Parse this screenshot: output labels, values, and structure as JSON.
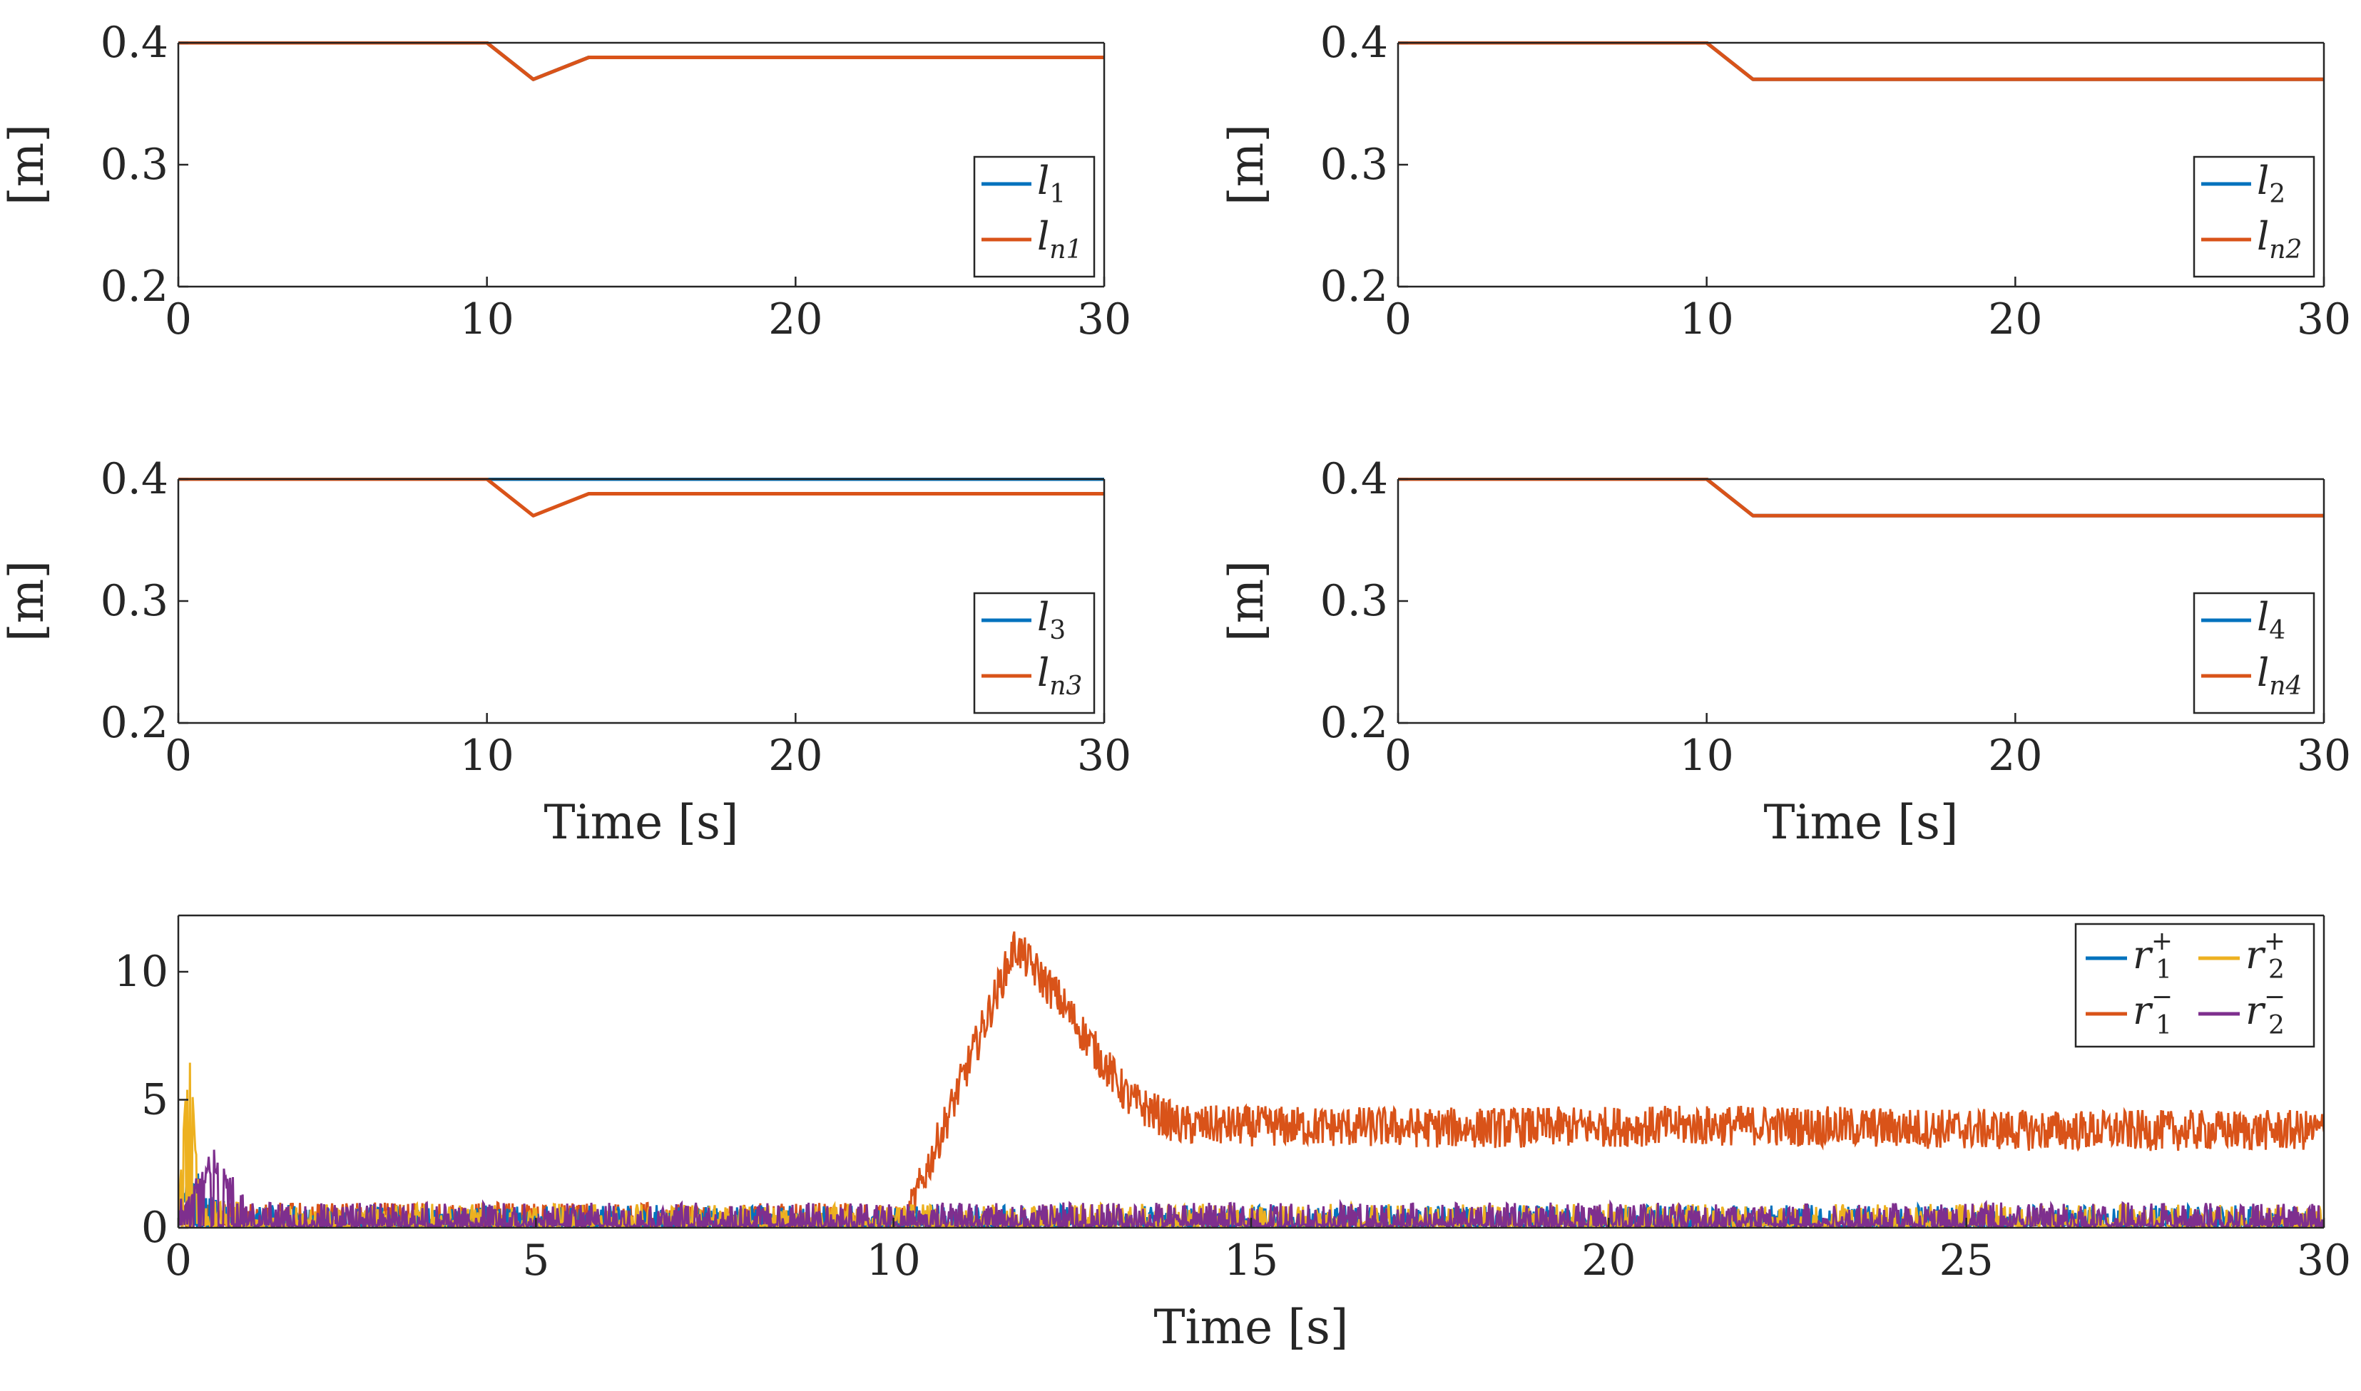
{
  "chart_data": [
    {
      "type": "line",
      "id": "p1",
      "xlabel": "",
      "ylabel": "[m]",
      "xlim": [
        0,
        30
      ],
      "ylim": [
        0.2,
        0.4
      ],
      "xticks": [
        "0",
        "10",
        "20",
        "30"
      ],
      "yticks": [
        "0.2",
        "0.3",
        "0.4"
      ],
      "series": [
        {
          "name": "l",
          "sub": "1",
          "color": "#0072BD",
          "x": [
            0,
            10,
            11.5,
            13.3,
            30
          ],
          "y": [
            0.4,
            0.4,
            0.37,
            0.388,
            0.388
          ]
        },
        {
          "name": "l",
          "sub": "n1",
          "color": "#D95319",
          "x": [
            0,
            10,
            11.5,
            13.3,
            30
          ],
          "y": [
            0.4,
            0.4,
            0.37,
            0.388,
            0.388
          ]
        }
      ]
    },
    {
      "type": "line",
      "id": "p2",
      "xlabel": "",
      "ylabel": "[m]",
      "xlim": [
        0,
        30
      ],
      "ylim": [
        0.2,
        0.4
      ],
      "xticks": [
        "0",
        "10",
        "20",
        "30"
      ],
      "yticks": [
        "0.2",
        "0.3",
        "0.4"
      ],
      "series": [
        {
          "name": "l",
          "sub": "2",
          "color": "#0072BD",
          "x": [
            0,
            10,
            11.5,
            30
          ],
          "y": [
            0.4,
            0.4,
            0.37,
            0.37
          ]
        },
        {
          "name": "l",
          "sub": "n2",
          "color": "#D95319",
          "x": [
            0,
            10,
            11.5,
            30
          ],
          "y": [
            0.4,
            0.4,
            0.37,
            0.37
          ]
        }
      ]
    },
    {
      "type": "line",
      "id": "p3",
      "xlabel": "Time [s]",
      "ylabel": "[m]",
      "xlim": [
        0,
        30
      ],
      "ylim": [
        0.2,
        0.4
      ],
      "xticks": [
        "0",
        "10",
        "20",
        "30"
      ],
      "yticks": [
        "0.2",
        "0.3",
        "0.4"
      ],
      "series": [
        {
          "name": "l",
          "sub": "3",
          "color": "#0072BD",
          "x": [
            0,
            30
          ],
          "y": [
            0.4,
            0.4
          ]
        },
        {
          "name": "l",
          "sub": "n3",
          "color": "#D95319",
          "x": [
            0,
            10,
            11.5,
            13.3,
            30
          ],
          "y": [
            0.4,
            0.4,
            0.37,
            0.388,
            0.388
          ]
        }
      ]
    },
    {
      "type": "line",
      "id": "p4",
      "xlabel": "Time [s]",
      "ylabel": "[m]",
      "xlim": [
        0,
        30
      ],
      "ylim": [
        0.2,
        0.4
      ],
      "xticks": [
        "0",
        "10",
        "20",
        "30"
      ],
      "yticks": [
        "0.2",
        "0.3",
        "0.4"
      ],
      "series": [
        {
          "name": "l",
          "sub": "4",
          "color": "#0072BD",
          "x": [
            0,
            10,
            11.5,
            30
          ],
          "y": [
            0.4,
            0.4,
            0.37,
            0.37
          ]
        },
        {
          "name": "l",
          "sub": "n4",
          "color": "#D95319",
          "x": [
            0,
            10,
            11.5,
            30
          ],
          "y": [
            0.4,
            0.4,
            0.37,
            0.37
          ]
        }
      ]
    },
    {
      "type": "line",
      "id": "p5",
      "xlabel": "Time [s]",
      "ylabel": "",
      "xlim": [
        0,
        30
      ],
      "ylim": [
        0,
        12.2
      ],
      "xticks": [
        "0",
        "5",
        "10",
        "15",
        "20",
        "25",
        "30"
      ],
      "yticks": [
        "0",
        "5",
        "10"
      ],
      "series": [
        {
          "name": "r",
          "sub": "1",
          "sup": "+",
          "color": "#0072BD",
          "noise": "low",
          "x": [
            0,
            0.25,
            0.5,
            1,
            30
          ],
          "y": [
            0.9,
            1.8,
            0.6,
            0.3,
            0.3
          ]
        },
        {
          "name": "r",
          "sub": "1",
          "sup": "−",
          "color": "#D95319",
          "noise": "high",
          "x": [
            0,
            10.2,
            11.7,
            12.3,
            13.3,
            14,
            18,
            22,
            26,
            30
          ],
          "y": [
            0.4,
            0.4,
            11.0,
            9.0,
            5.0,
            4.0,
            3.9,
            4.0,
            3.8,
            3.8
          ]
        },
        {
          "name": "r",
          "sub": "2",
          "sup": "+",
          "color": "#EDB120",
          "noise": "low",
          "x": [
            0,
            0.15,
            0.3,
            1,
            30
          ],
          "y": [
            0.6,
            6.6,
            0.8,
            0.35,
            0.35
          ]
        },
        {
          "name": "r",
          "sub": "2",
          "sup": "−",
          "color": "#7E2F8E",
          "noise": "low",
          "x": [
            0,
            0.5,
            1,
            30
          ],
          "y": [
            0.6,
            2.5,
            0.4,
            0.4
          ]
        }
      ]
    }
  ]
}
